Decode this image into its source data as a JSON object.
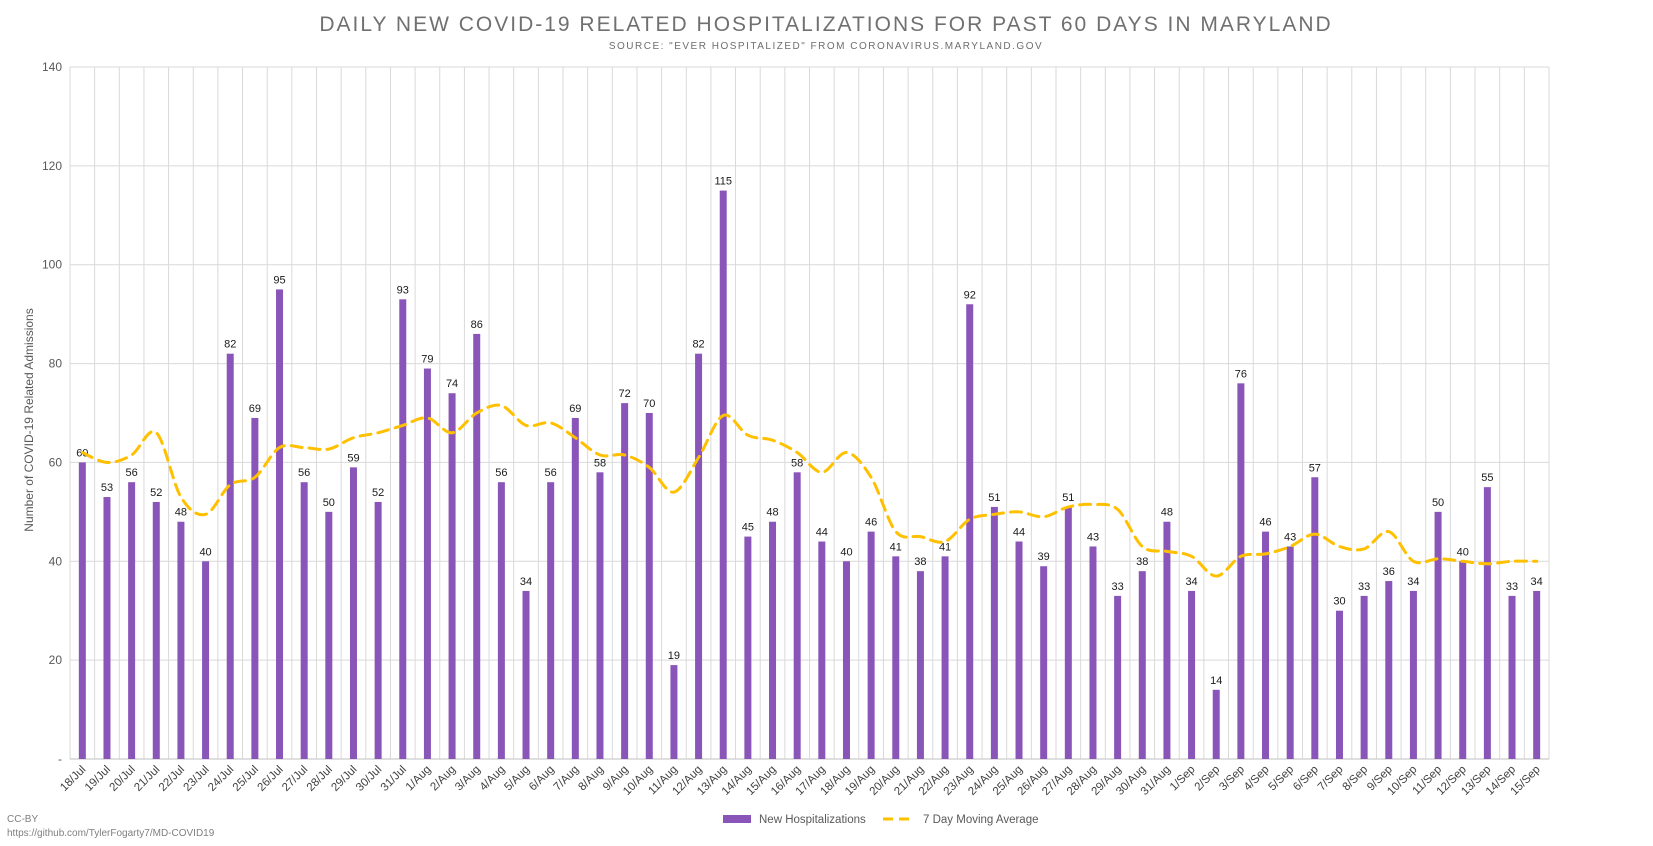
{
  "chart_data": {
    "type": "bar",
    "title": "DAILY NEW COVID-19 RELATED HOSPITALIZATIONS FOR PAST 60 DAYS IN MARYLAND",
    "subtitle": "SOURCE: \"EVER HOSPITALIZED\" FROM CORONAVIRUS.MARYLAND.GOV",
    "xlabel": "",
    "ylabel": "Number of COVID-19 Related Admissions",
    "ylim": [
      0,
      140
    ],
    "yticks": [
      "-",
      "20",
      "40",
      "60",
      "80",
      "100",
      "120",
      "140"
    ],
    "grid": true,
    "legend_position": "bottom-center",
    "categories": [
      "18/Jul",
      "19/Jul",
      "20/Jul",
      "21/Jul",
      "22/Jul",
      "23/Jul",
      "24/Jul",
      "25/Jul",
      "26/Jul",
      "27/Jul",
      "28/Jul",
      "29/Jul",
      "30/Jul",
      "31/Jul",
      "1/Aug",
      "2/Aug",
      "3/Aug",
      "4/Aug",
      "5/Aug",
      "6/Aug",
      "7/Aug",
      "8/Aug",
      "9/Aug",
      "10/Aug",
      "11/Aug",
      "12/Aug",
      "13/Aug",
      "14/Aug",
      "15/Aug",
      "16/Aug",
      "17/Aug",
      "18/Aug",
      "19/Aug",
      "20/Aug",
      "21/Aug",
      "22/Aug",
      "23/Aug",
      "24/Aug",
      "25/Aug",
      "26/Aug",
      "27/Aug",
      "28/Aug",
      "29/Aug",
      "30/Aug",
      "31/Aug",
      "1/Sep",
      "2/Sep",
      "3/Sep",
      "4/Sep",
      "5/Sep",
      "6/Sep",
      "7/Sep",
      "8/Sep",
      "9/Sep",
      "10/Sep",
      "11/Sep",
      "12/Sep",
      "13/Sep",
      "14/Sep",
      "15/Sep"
    ],
    "series": [
      {
        "name": "New Hospitalizations",
        "type": "bar",
        "color": "#8a55b8",
        "values": [
          60,
          53,
          56,
          52,
          48,
          40,
          82,
          69,
          95,
          56,
          50,
          59,
          52,
          93,
          79,
          74,
          86,
          56,
          34,
          56,
          69,
          58,
          72,
          70,
          19,
          82,
          115,
          45,
          48,
          58,
          44,
          40,
          46,
          41,
          38,
          41,
          92,
          51,
          44,
          39,
          51,
          43,
          33,
          38,
          48,
          34,
          14,
          76,
          46,
          43,
          57,
          30,
          33,
          36,
          34,
          50,
          40,
          55,
          33,
          34
        ]
      },
      {
        "name": "7 Day Moving Average",
        "type": "line",
        "style": "dashed",
        "color": "#ffc000",
        "values": [
          62,
          60,
          61.5,
          66,
          53,
          49.5,
          55.5,
          57,
          63,
          63,
          62.7,
          65,
          66,
          67.5,
          69,
          66,
          70,
          71.5,
          67.5,
          68,
          65,
          61.5,
          61.5,
          59,
          54,
          61,
          69.5,
          65.5,
          64.5,
          62,
          58,
          62,
          57,
          46,
          45,
          44,
          48.5,
          49.5,
          50,
          49,
          51,
          51.5,
          50.5,
          43,
          42,
          41,
          37,
          41,
          41.5,
          43,
          45.5,
          43,
          42.5,
          46,
          40,
          40.5,
          40,
          39.5,
          40,
          40
        ]
      }
    ]
  },
  "footer": {
    "license": "CC-BY",
    "url": "https://github.com/TylerFogarty7/MD-COVID19"
  }
}
